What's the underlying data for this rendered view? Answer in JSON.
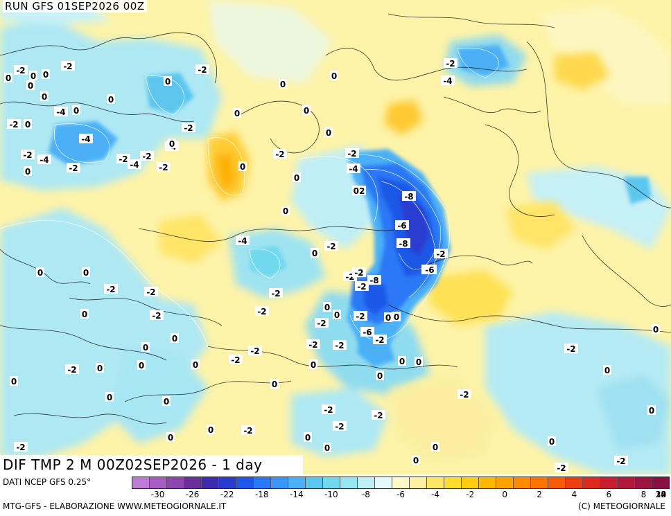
{
  "header": {
    "run": "RUN GFS 01SEP2026 00Z"
  },
  "map_title": "DIF TMP 2 M 00Z02SEP2026 - 1 day",
  "footer": {
    "source": "DATI NCEP GFS 0.25°",
    "credit": "MTG-GFS - ELABORAZIONE WWW.METEOGIORNALE.IT",
    "copyright": "(C) METEOGIORNALE"
  },
  "legend": {
    "colors": [
      "#c07ad6",
      "#a85cc4",
      "#8f45b0",
      "#6a2f9a",
      "#3e2bb0",
      "#2a3cd0",
      "#1f58e8",
      "#2a78f5",
      "#3a96f7",
      "#4cb0f6",
      "#5cc6ef",
      "#72d8ee",
      "#96e6f2",
      "#bff0f6",
      "#e4f9fa",
      "#fdf8c8",
      "#fff1a0",
      "#ffe766",
      "#ffdb2e",
      "#ffcc10",
      "#ffb800",
      "#ffa200",
      "#ff8a00",
      "#ff7300",
      "#f85a08",
      "#ee3f12",
      "#dd2a1e",
      "#c81e32",
      "#b2183c",
      "#9c1440",
      "#8a1044"
    ],
    "tick_labels": [
      "-30",
      "-26",
      "-22",
      "-18",
      "-14",
      "-10",
      "-8",
      "-6",
      "-4",
      "-2",
      "0",
      "2",
      "4",
      "6",
      "8",
      "10",
      "14",
      "18",
      "22",
      "30"
    ]
  },
  "contour_labels": [
    "0",
    "-2",
    "0",
    "0",
    "-2",
    "-4",
    "0",
    "0",
    "0",
    "-2",
    "0",
    "0",
    "-2",
    "0",
    "-2",
    "-4",
    "-2",
    "-4",
    "0",
    "-2",
    "-2",
    "-4",
    "-2",
    "-4",
    "-2",
    "0",
    "0",
    "0",
    "0",
    "0",
    "0",
    "0",
    "0",
    "-2",
    "-4",
    "-2",
    "02",
    "-8",
    "0",
    "-6",
    "-8",
    "-2",
    "-6",
    "-2",
    "-4",
    "-6",
    "-8",
    "-2",
    "0",
    "-4",
    "-2",
    "-2",
    "-2",
    "-2",
    "-6",
    "-2",
    "-2",
    "0",
    "0",
    "-2",
    "0",
    "0",
    "0",
    "-2",
    "-2",
    "-2",
    "-2",
    "0",
    "0",
    "0",
    "0",
    "-2",
    "0",
    "0",
    "0",
    "-2",
    "0",
    "0",
    "-2",
    "-2",
    "0",
    "-2",
    "0",
    "0",
    "0",
    "0",
    "0",
    "0",
    "0",
    "-2",
    "0",
    "-2",
    "-2",
    "-2",
    "-2",
    "0",
    "0",
    "0",
    "-2",
    "0",
    "-2",
    "-2",
    "0",
    "0",
    "-2",
    "0"
  ]
}
